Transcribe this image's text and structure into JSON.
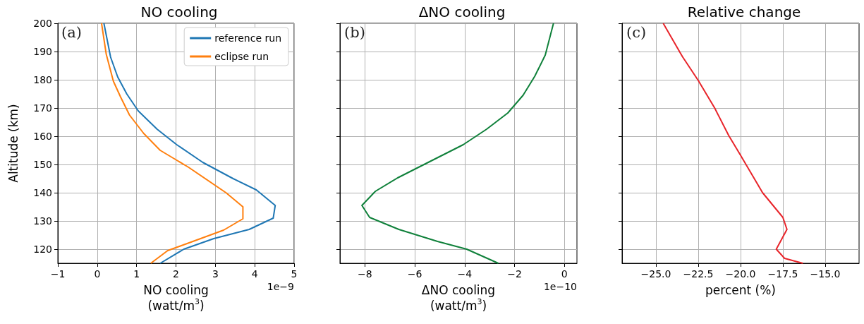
{
  "chart_data": [
    {
      "type": "line",
      "title": "NO cooling",
      "xlabel": "NO cooling\n(watt/m$^{3}$)",
      "ylabel": "Altitude (km)",
      "orientation": "horizontal",
      "xlim": [
        -1,
        5
      ],
      "xticks": [
        -1,
        0,
        1,
        2,
        3,
        4,
        5
      ],
      "ylim": [
        115,
        200
      ],
      "yticks": [
        120,
        130,
        140,
        150,
        160,
        170,
        180,
        190,
        200
      ],
      "grid": true,
      "legend": "top right",
      "annotations": [
        "(a)",
        "1e−9"
      ],
      "series": [
        {
          "name": "reference run",
          "color": "#1f77b4",
          "x": [
            200,
            188,
            181,
            175,
            169,
            162.5,
            157,
            150.75,
            145,
            141,
            135.5,
            131,
            127,
            123.75,
            120,
            115
          ],
          "values": [
            0.17,
            0.34,
            0.52,
            0.75,
            1.04,
            1.52,
            2.02,
            2.68,
            3.45,
            4.04,
            4.52,
            4.47,
            3.86,
            2.96,
            2.2,
            1.6
          ]
        },
        {
          "name": "eclipse run",
          "color": "#ff7f0e",
          "x": [
            200,
            189,
            179.5,
            174,
            167.5,
            161,
            155,
            151.5,
            149,
            140,
            135,
            130.75,
            126.75,
            122.75,
            119.5,
            115
          ],
          "values": [
            0.11,
            0.23,
            0.41,
            0.59,
            0.82,
            1.18,
            1.6,
            2.02,
            2.32,
            3.27,
            3.7,
            3.7,
            3.21,
            2.43,
            1.79,
            1.36
          ]
        }
      ]
    },
    {
      "type": "line",
      "title": "ΔNO cooling",
      "xlabel": "ΔNO cooling\n(watt/m$^{3}$)",
      "orientation": "horizontal",
      "xlim": [
        -9,
        0.5
      ],
      "xticks": [
        -8,
        -6,
        -4,
        -2,
        0
      ],
      "ylim": [
        115,
        200
      ],
      "yticks": [
        120,
        130,
        140,
        150,
        160,
        170,
        180,
        190,
        200
      ],
      "grid": true,
      "tick_labels": "x",
      "annotations": [
        "(b)",
        "1e−10"
      ],
      "series": [
        {
          "color": "#0f803a",
          "x": [
            200,
            188.75,
            181.25,
            174.5,
            168.25,
            162.5,
            157,
            150.75,
            145.25,
            140.5,
            135.5,
            131.25,
            127,
            122.75,
            120,
            115
          ],
          "values": [
            -0.44,
            -0.77,
            -1.19,
            -1.66,
            -2.27,
            -3.12,
            -4.06,
            -5.46,
            -6.69,
            -7.58,
            -8.12,
            -7.81,
            -6.64,
            -5.09,
            -3.92,
            -2.65
          ]
        }
      ]
    },
    {
      "type": "line",
      "title": "Relative change",
      "xlabel": "percent (%)",
      "orientation": "horizontal",
      "xlim": [
        -27,
        -13
      ],
      "xticks": [
        {
          "value": -25,
          "label": "−25.0"
        },
        {
          "value": -22.5,
          "label": "−22.5"
        },
        {
          "value": -20,
          "label": "−20.0"
        },
        {
          "value": -17.5,
          "label": "−17.5"
        },
        {
          "value": -15,
          "label": "−15.0"
        }
      ],
      "ylim": [
        115,
        200
      ],
      "yticks": [
        120,
        130,
        140,
        150,
        160,
        170,
        180,
        190,
        200
      ],
      "grid": true,
      "tick_labels": "x",
      "annotations": [
        "(c)"
      ],
      "series": [
        {
          "color": "#e8242a",
          "x": [
            200,
            188.25,
            179.75,
            170,
            160.25,
            153.25,
            145,
            140,
            131.25,
            127,
            120,
            116.75,
            115
          ],
          "values": [
            -24.57,
            -23.44,
            -22.5,
            -21.53,
            -20.7,
            -20,
            -19.19,
            -18.7,
            -17.5,
            -17.26,
            -17.89,
            -17.4,
            -16.32
          ]
        }
      ]
    }
  ]
}
